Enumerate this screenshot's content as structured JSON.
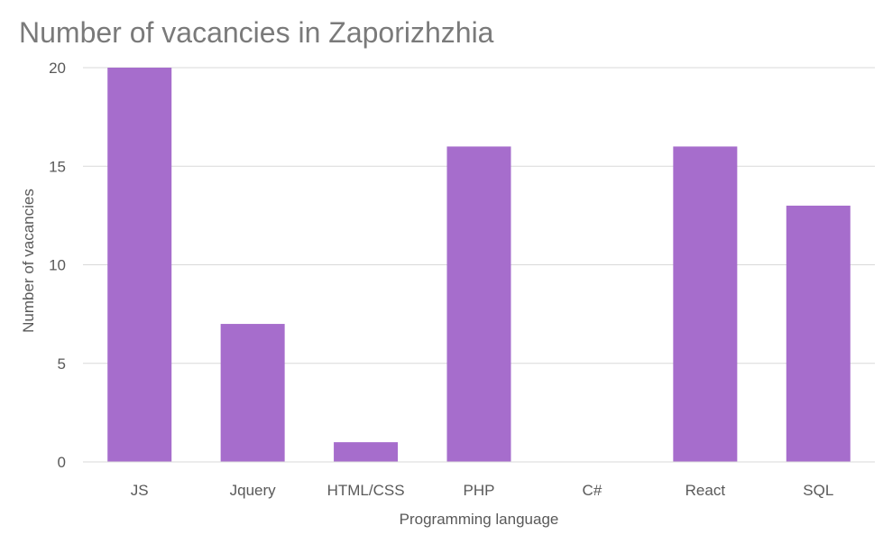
{
  "chart_data": {
    "type": "bar",
    "title": "Number of vacancies in Zaporizhzhia",
    "xlabel": "Programming language",
    "ylabel": "Number of vacancies",
    "categories": [
      "JS",
      "Jquery",
      "HTML/CSS",
      "PHP",
      "C#",
      "React",
      "SQL"
    ],
    "series": [
      {
        "values": [
          20,
          7,
          1,
          16,
          0,
          16,
          13
        ]
      }
    ],
    "ylim": [
      0,
      20
    ],
    "yticks": [
      0,
      5,
      10,
      15,
      20
    ],
    "grid": true,
    "bar_color": "#a66dcc",
    "legend": "none"
  }
}
